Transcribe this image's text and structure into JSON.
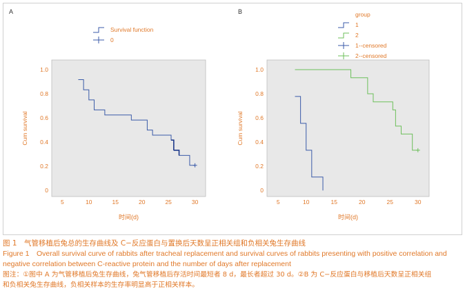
{
  "chart_data": [
    {
      "type": "line",
      "panel_label": "A",
      "xlabel": "时间(d)",
      "ylabel": "Cum survival",
      "xlim": [
        3,
        32
      ],
      "ylim": [
        -0.05,
        1.08
      ],
      "x_ticks": [
        "5",
        "10",
        "15",
        "20",
        "25",
        "30"
      ],
      "y_ticks": [
        "0",
        "0.2",
        "0.4",
        "0.6",
        "0.8",
        "1.0"
      ],
      "legend": {
        "position": "top-left",
        "title": "",
        "entries": [
          "Survival function",
          "0"
        ]
      },
      "series": [
        {
          "name": "Survival function",
          "color": "#3a5aa8",
          "highlight_color": "#1f3a8a",
          "highlight_x_range": [
            25.5,
            26
          ],
          "step": [
            [
              8,
              0.917
            ],
            [
              9,
              0.833
            ],
            [
              10,
              0.75
            ],
            [
              11,
              0.667
            ],
            [
              13,
              0.625
            ],
            [
              18,
              0.583
            ],
            [
              21,
              0.5
            ],
            [
              22,
              0.458
            ],
            [
              25.5,
              0.417
            ],
            [
              26,
              0.333
            ],
            [
              27,
              0.29
            ],
            [
              29,
              0.208
            ],
            [
              30,
              0.208
            ]
          ]
        },
        {
          "name": "0",
          "color": "#3a5aa8",
          "censored": [
            [
              30,
              0.208
            ]
          ]
        }
      ]
    },
    {
      "type": "line",
      "panel_label": "B",
      "xlabel": "时间(d)",
      "ylabel": "Cum survival",
      "xlim": [
        3,
        32
      ],
      "ylim": [
        -0.05,
        1.08
      ],
      "x_ticks": [
        "5",
        "10",
        "15",
        "20",
        "25",
        "30"
      ],
      "y_ticks": [
        "0",
        "0.2",
        "0.4",
        "0.6",
        "0.8",
        "1.0"
      ],
      "legend": {
        "position": "top-left",
        "title": "group",
        "entries": [
          "1",
          "2",
          "1--censored",
          "2--censored"
        ]
      },
      "series": [
        {
          "name": "1",
          "color": "#3a5aa8",
          "step": [
            [
              8,
              0.778
            ],
            [
              9,
              0.556
            ],
            [
              10,
              0.333
            ],
            [
              11,
              0.111
            ],
            [
              13,
              0
            ]
          ]
        },
        {
          "name": "2",
          "color": "#6cbf5a",
          "step": [
            [
              8,
              1.0
            ],
            [
              18,
              0.933
            ],
            [
              21,
              0.8
            ],
            [
              22,
              0.733
            ],
            [
              25.5,
              0.667
            ],
            [
              26,
              0.533
            ],
            [
              27,
              0.467
            ],
            [
              29,
              0.333
            ],
            [
              30,
              0.333
            ]
          ]
        },
        {
          "name": "1--censored",
          "color": "#3a5aa8",
          "censored": []
        },
        {
          "name": "2--censored",
          "color": "#6cbf5a",
          "censored": [
            [
              30,
              0.333
            ]
          ]
        }
      ]
    }
  ],
  "caption": {
    "cn_title": "图 1　气管移植后兔总的生存曲线及 C−反应蛋白与置换后天数呈正相关组和负相关兔生存曲线",
    "en_title_1": "Figure 1　Overall survival curve of rabbits after tracheal replacement and survival curves of rabbits presenting with positive correlation and",
    "en_title_2": "negative correlation between C-reactive protein and the number of days after replacement",
    "note_1": "图注：①图中 A 为气管移植后兔生存曲线，兔气管移植后存活时间最短者 8 d，最长者超过 30 d。②B 为 C−反应蛋白与移植后天数呈正相关组",
    "note_2": "和负相关兔生存曲线，负相关样本的生存率明显高于正相关样本。"
  },
  "colors": {
    "axis_text": "#e07828",
    "plot_bg": "#e8e8e8",
    "panel_label": "#333333"
  }
}
